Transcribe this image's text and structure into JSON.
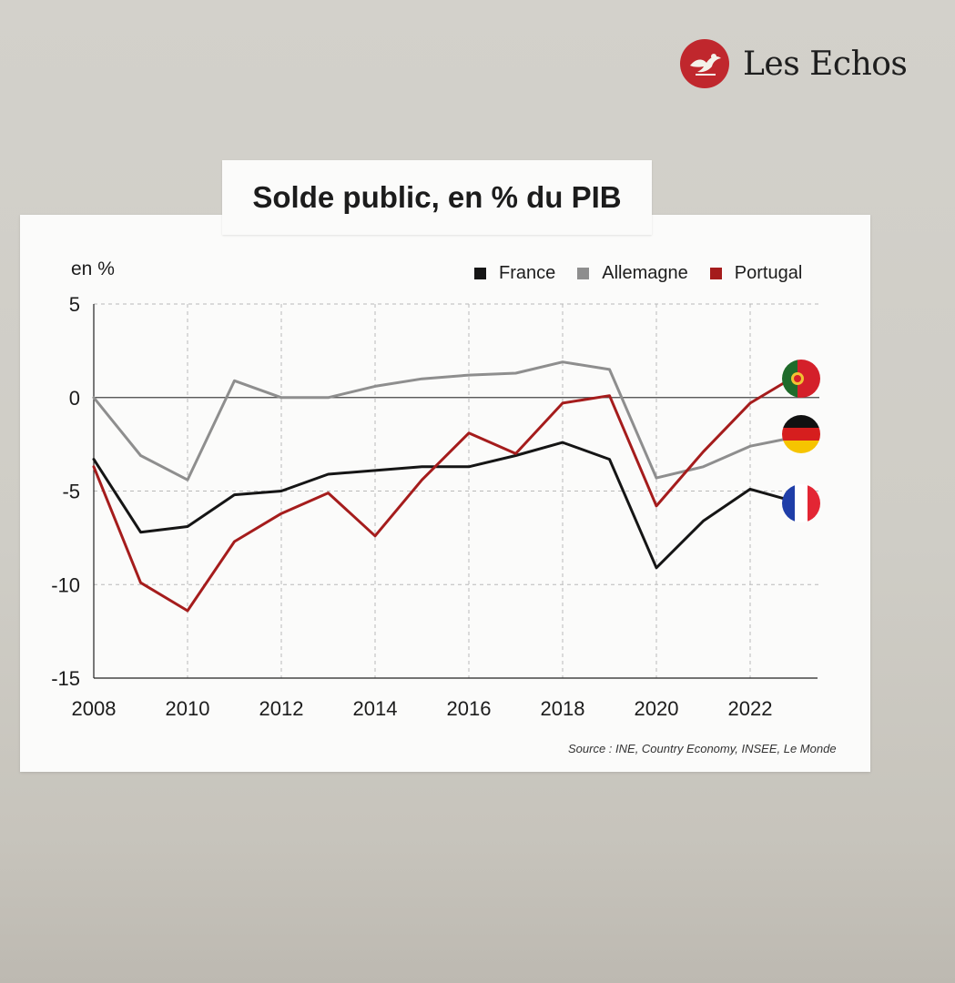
{
  "brand": {
    "name": "Les Echos",
    "accent_color": "#c0272d",
    "icon": "les-echos-winged-figure-icon"
  },
  "chart_data": {
    "type": "line",
    "title": "Solde public, en % du PIB",
    "ylabel": "en %",
    "xlabel": "",
    "source": "Source : INE, Country Economy, INSEE, Le Monde",
    "ylim": [
      -15,
      5
    ],
    "xlim": [
      2008,
      2023.5
    ],
    "yticks": [
      "5",
      "0",
      "-5",
      "-10",
      "-15"
    ],
    "xticks": [
      "2008",
      "2010",
      "2012",
      "2014",
      "2016",
      "2018",
      "2020",
      "2022"
    ],
    "grid": true,
    "zero_line": true,
    "legend_position": "top-right",
    "x": [
      2008,
      2009,
      2010,
      2011,
      2012,
      2013,
      2014,
      2015,
      2016,
      2017,
      2018,
      2019,
      2020,
      2021,
      2022,
      2023
    ],
    "series": [
      {
        "name": "France",
        "color": "#151515",
        "flag": "france-flag-icon",
        "values": [
          -3.3,
          -7.2,
          -6.9,
          -5.2,
          -5.0,
          -4.1,
          -3.9,
          -3.7,
          -3.7,
          -3.1,
          -2.4,
          -3.3,
          -9.1,
          -6.6,
          -4.9,
          -5.6
        ]
      },
      {
        "name": "Allemagne",
        "color": "#8e8e8e",
        "flag": "germany-flag-icon",
        "values": [
          0.0,
          -3.1,
          -4.4,
          0.9,
          0.0,
          0.0,
          0.6,
          1.0,
          1.2,
          1.3,
          1.9,
          1.5,
          -4.3,
          -3.7,
          -2.6,
          -2.1
        ]
      },
      {
        "name": "Portugal",
        "color": "#a51c1c",
        "flag": "portugal-flag-icon",
        "values": [
          -3.7,
          -9.9,
          -11.4,
          -7.7,
          -6.2,
          -5.1,
          -7.4,
          -4.4,
          -1.9,
          -3.0,
          -0.3,
          0.1,
          -5.8,
          -2.9,
          -0.3,
          1.2
        ]
      }
    ]
  }
}
